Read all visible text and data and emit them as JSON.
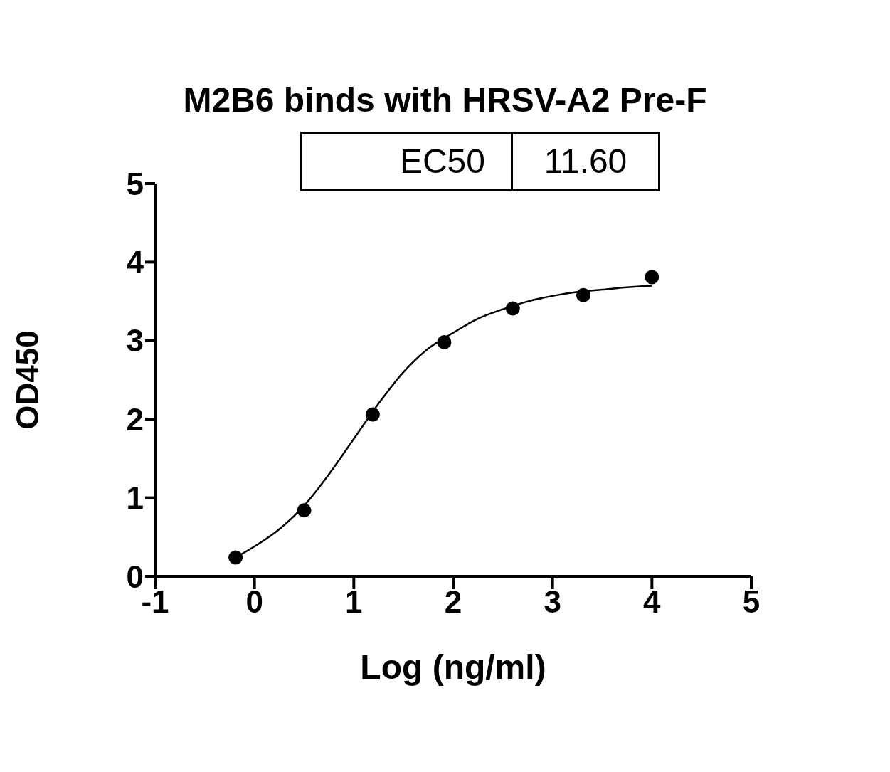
{
  "chart_data": {
    "type": "scatter",
    "title": "M2B6 binds with HRSV-A2 Pre-F",
    "xlabel": "Log (ng/ml)",
    "ylabel": "OD450",
    "annotations": [
      "EC50",
      "11.60"
    ],
    "series": [
      {
        "color": "#000000",
        "marker": "circle",
        "x": [
          -0.19,
          0.5,
          1.19,
          1.91,
          2.6,
          3.31,
          4.0
        ],
        "values": [
          0.24,
          0.84,
          2.06,
          2.98,
          3.41,
          3.58,
          3.81
        ]
      },
      {
        "type": "line",
        "color": "#000000",
        "x": [
          -0.19,
          0,
          0.25,
          0.5,
          0.75,
          1,
          1.25,
          1.5,
          1.75,
          2,
          2.25,
          2.5,
          2.75,
          3,
          3.25,
          3.5,
          3.75,
          4
        ],
        "values": [
          0.24,
          0.38,
          0.6,
          0.9,
          1.3,
          1.75,
          2.2,
          2.6,
          2.9,
          3.1,
          3.28,
          3.4,
          3.5,
          3.57,
          3.62,
          3.65,
          3.68,
          3.7
        ]
      }
    ],
    "xlim": [
      -1,
      5
    ],
    "xticks": [
      -1,
      0,
      1,
      2,
      3,
      4,
      5
    ],
    "ylim": [
      0,
      5
    ],
    "yticks": [
      0,
      1,
      2,
      3,
      4,
      5
    ],
    "grid": false,
    "legend": false
  }
}
